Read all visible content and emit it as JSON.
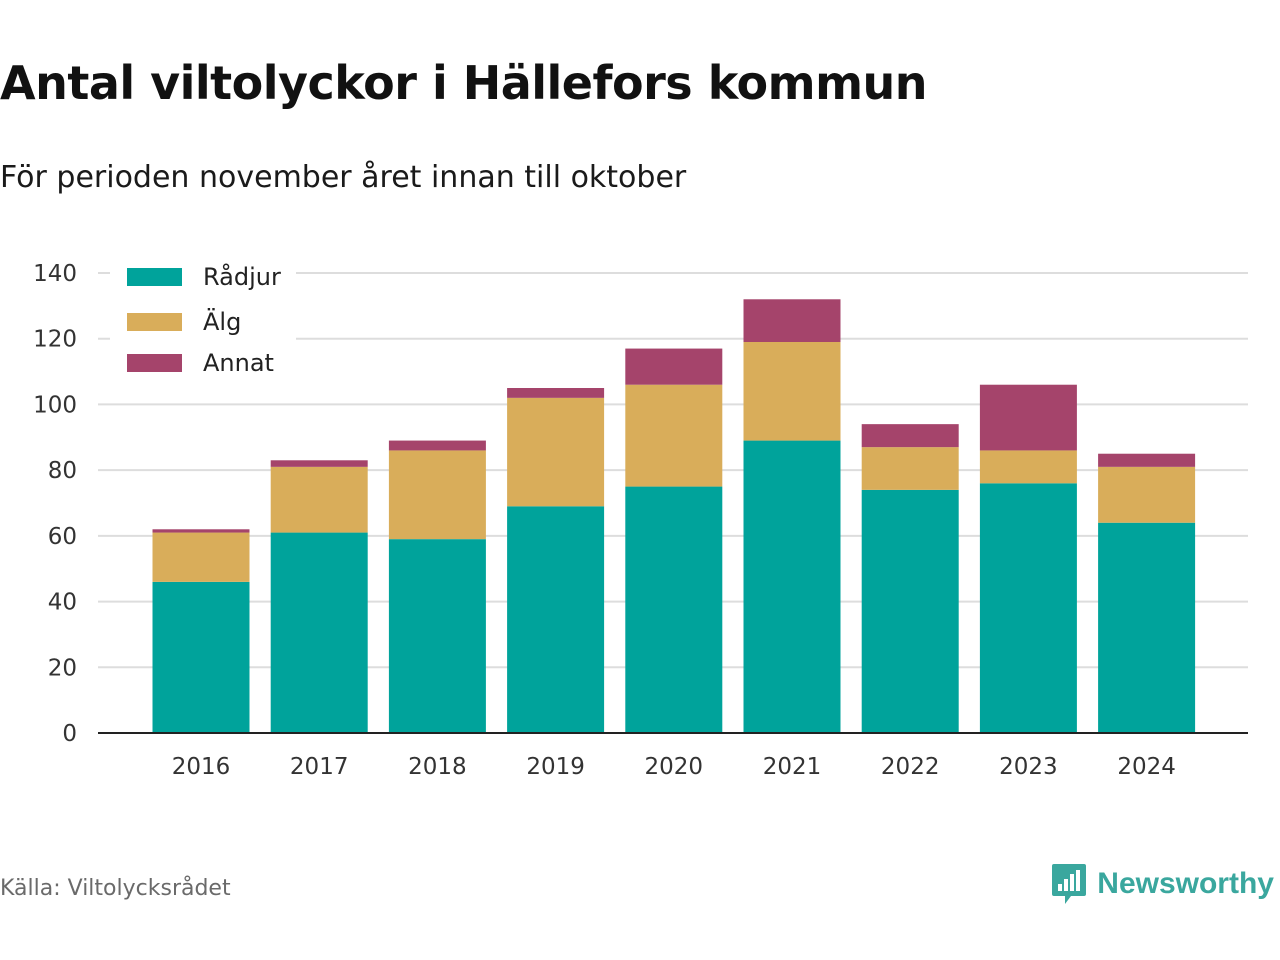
{
  "header": {
    "title": "Antal viltolyckor i Hällefors kommun",
    "subtitle": "För perioden november året innan till oktober"
  },
  "footer": {
    "source": "Källa: Viltolycksrådet",
    "brand": "Newsworthy",
    "brand_icon": "newsworthy-logo-icon"
  },
  "colors": {
    "radjur": "#00a39b",
    "alg": "#d9ad5a",
    "annat": "#a5446b",
    "grid": "#dddddd",
    "axis": "#222222",
    "brand": "#3aa79e"
  },
  "chart_data": {
    "type": "bar",
    "stacked": true,
    "categories": [
      "2016",
      "2017",
      "2018",
      "2019",
      "2020",
      "2021",
      "2022",
      "2023",
      "2024"
    ],
    "series": [
      {
        "name": "Rådjur",
        "values": [
          46,
          61,
          59,
          69,
          75,
          89,
          74,
          76,
          64
        ]
      },
      {
        "name": "Älg",
        "values": [
          15,
          20,
          27,
          33,
          31,
          30,
          13,
          10,
          17
        ]
      },
      {
        "name": "Annat",
        "values": [
          1,
          2,
          3,
          3,
          11,
          13,
          7,
          20,
          4
        ]
      }
    ],
    "ylim": [
      0,
      140
    ],
    "yticks": [
      0,
      20,
      40,
      60,
      80,
      100,
      120,
      140
    ],
    "xlabel": "",
    "ylabel": "",
    "grid": true,
    "legend": "top-left"
  }
}
